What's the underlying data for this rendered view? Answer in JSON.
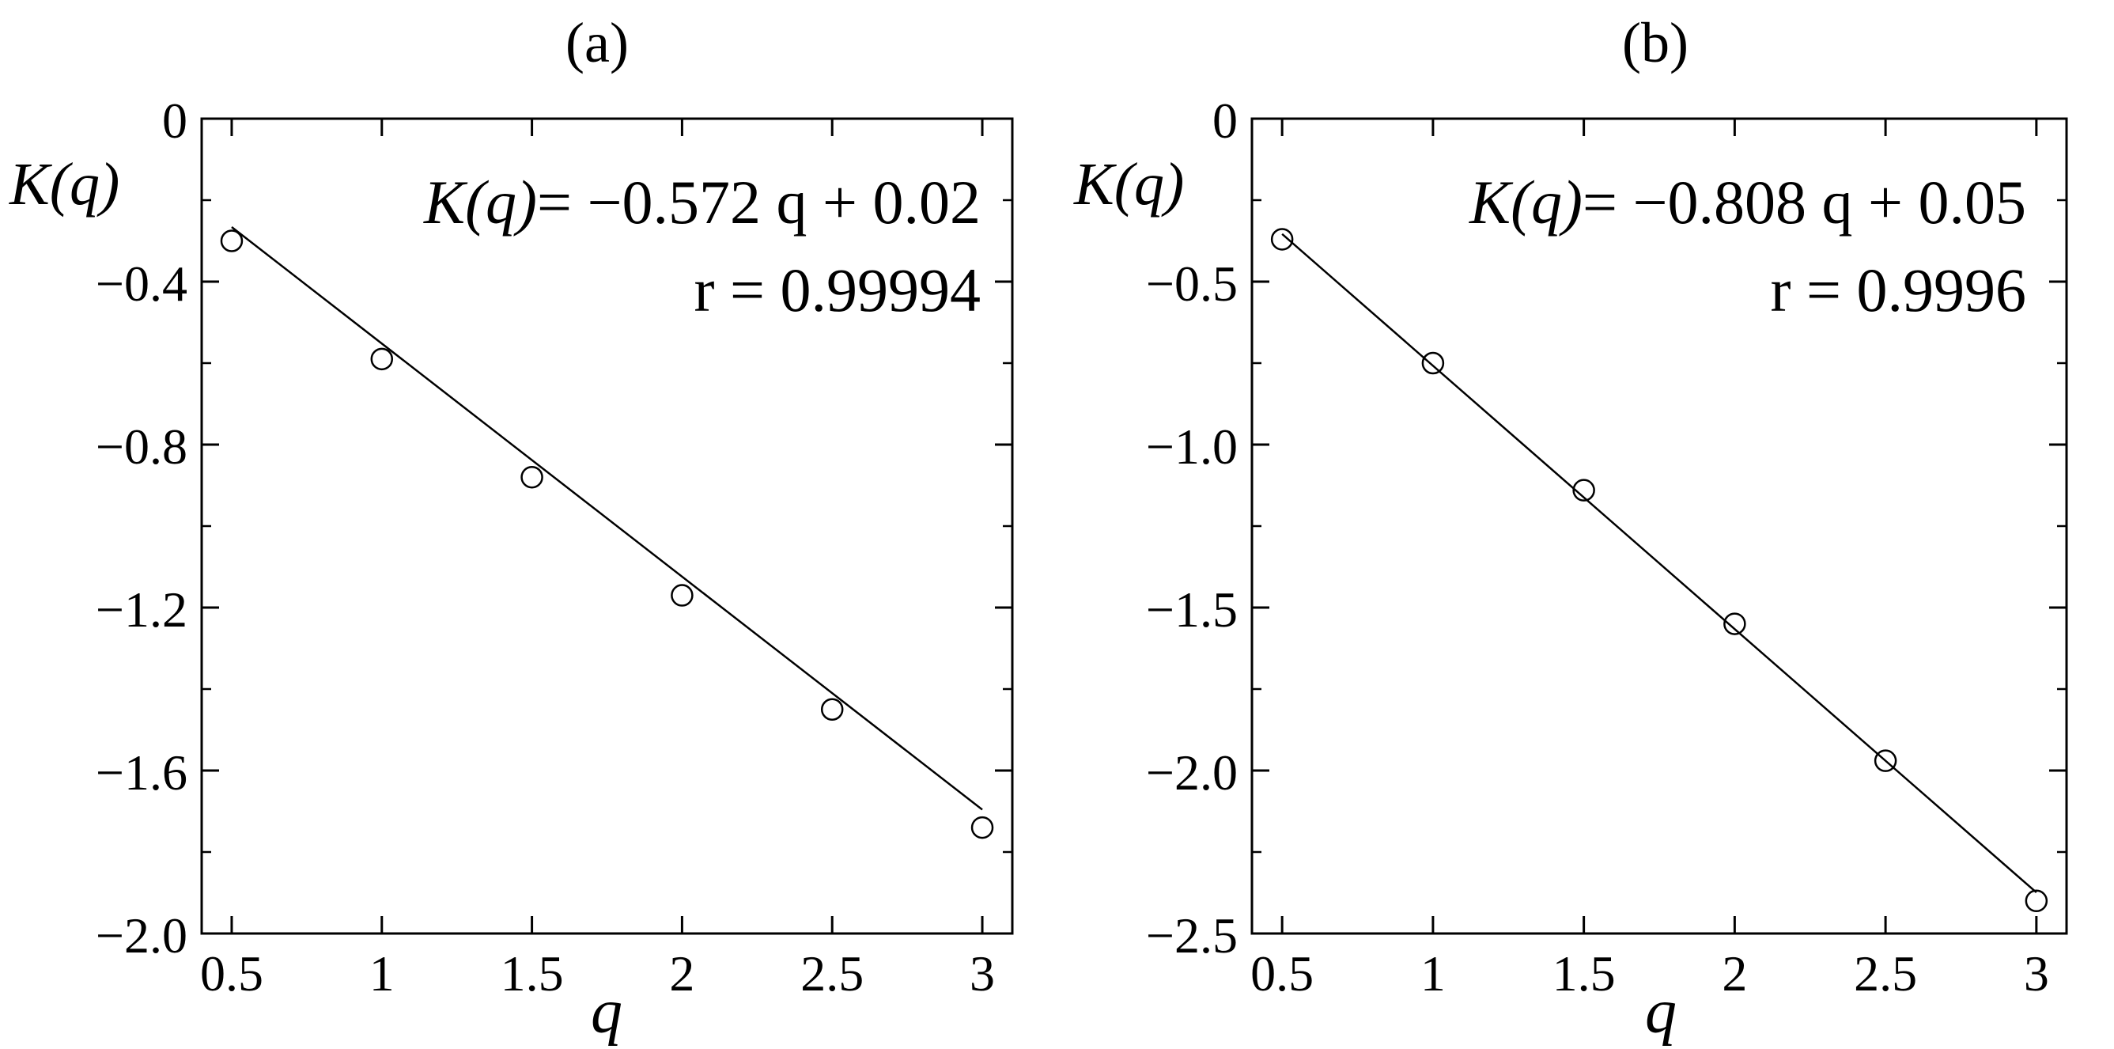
{
  "chart_data": [
    {
      "type": "scatter",
      "panel_label": "(a)",
      "xlabel": "q",
      "ylabel": "K(q)",
      "xlim": [
        0.4,
        3.1
      ],
      "ylim": [
        -2.0,
        0
      ],
      "xticks": [
        0.5,
        1,
        1.5,
        2,
        2.5,
        3
      ],
      "xtick_labels": [
        "0.5",
        "1",
        "1.5",
        "2",
        "2.5",
        "3"
      ],
      "yticks": [
        0,
        -0.4,
        -0.8,
        -1.2,
        -1.6,
        -2.0
      ],
      "ytick_labels": [
        "0",
        "−0.4",
        "−0.8",
        "−1.2",
        "−1.6",
        "−2.0"
      ],
      "y_minor_step": 0.2,
      "grid": false,
      "series": [
        {
          "marker": "open-circle",
          "x": [
            0.5,
            1.0,
            1.5,
            2.0,
            2.5,
            3.0
          ],
          "y": [
            -0.3,
            -0.59,
            -0.88,
            -1.17,
            -1.45,
            -1.74
          ]
        }
      ],
      "fit": {
        "slope": -0.572,
        "intercept": 0.02
      },
      "annotation": {
        "lhs": "K(q)",
        "rhs": "= −0.572 q + 0.02",
        "r": "r = 0.99994"
      }
    },
    {
      "type": "scatter",
      "panel_label": "(b)",
      "xlabel": "q",
      "ylabel": "K(q)",
      "xlim": [
        0.4,
        3.1
      ],
      "ylim": [
        -2.5,
        0
      ],
      "xticks": [
        0.5,
        1,
        1.5,
        2,
        2.5,
        3
      ],
      "xtick_labels": [
        "0.5",
        "1",
        "1.5",
        "2",
        "2.5",
        "3"
      ],
      "yticks": [
        0,
        -0.5,
        -1.0,
        -1.5,
        -2.0,
        -2.5
      ],
      "ytick_labels": [
        "0",
        "−0.5",
        "−1.0",
        "−1.5",
        "−2.0",
        "−2.5"
      ],
      "y_minor_step": 0.25,
      "grid": false,
      "series": [
        {
          "marker": "open-circle",
          "x": [
            0.5,
            1.0,
            1.5,
            2.0,
            2.5,
            3.0
          ],
          "y": [
            -0.37,
            -0.75,
            -1.14,
            -1.55,
            -1.97,
            -2.4
          ]
        }
      ],
      "fit": {
        "slope": -0.808,
        "intercept": 0.05
      },
      "annotation": {
        "lhs": "K(q)",
        "rhs": "= −0.808 q + 0.05",
        "r": "r = 0.9996"
      }
    }
  ]
}
